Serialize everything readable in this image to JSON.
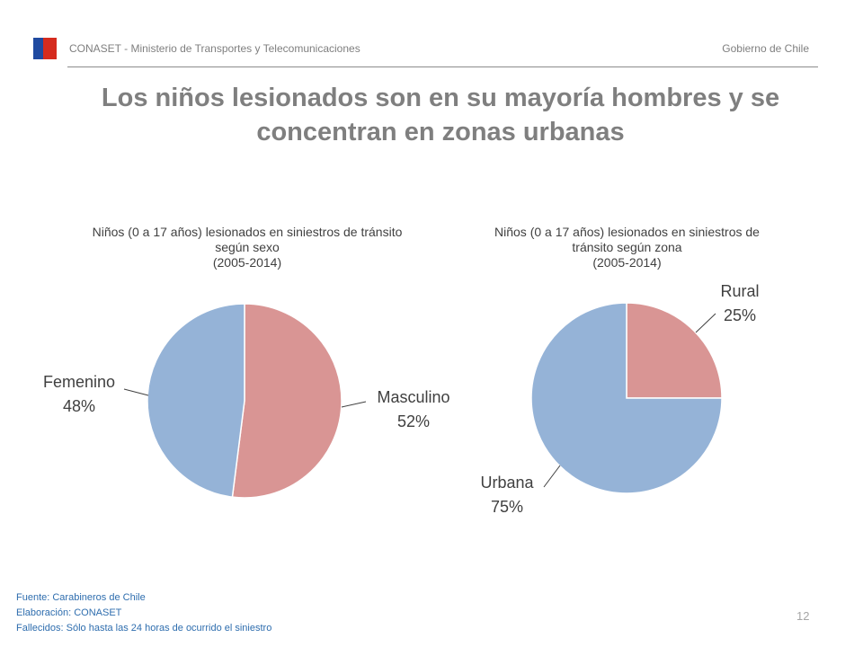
{
  "header": {
    "org": "CONASET - Ministerio de Transportes y Telecomunicaciones",
    "gov": "Gobierno de Chile"
  },
  "title": "Los niños lesionados son en su mayoría hombres y se concentran en zonas urbanas",
  "colors": {
    "series_a": "#d99594",
    "series_b": "#95b3d7"
  },
  "chart_data": [
    {
      "type": "pie",
      "title_lines": [
        "Niños (0 a 17 años) lesionados en siniestros de tránsito",
        "según sexo",
        "(2005-2014)"
      ],
      "slices": [
        {
          "label": "Masculino",
          "value": 52,
          "value_label": "52%",
          "color": "#d99594"
        },
        {
          "label": "Femenino",
          "value": 48,
          "value_label": "48%",
          "color": "#95b3d7"
        }
      ]
    },
    {
      "type": "pie",
      "title_lines": [
        "Niños (0 a 17 años) lesionados en siniestros de",
        "tránsito según zona",
        "(2005-2014)"
      ],
      "slices": [
        {
          "label": "Rural",
          "value": 25,
          "value_label": "25%",
          "color": "#d99594"
        },
        {
          "label": "Urbana",
          "value": 75,
          "value_label": "75%",
          "color": "#95b3d7"
        }
      ]
    }
  ],
  "footer": {
    "source": "Fuente: Carabineros de Chile",
    "elaboration": "Elaboración: CONASET",
    "note": "Fallecidos: Sólo hasta las 24 horas de ocurrido el siniestro"
  },
  "page_number": "12"
}
